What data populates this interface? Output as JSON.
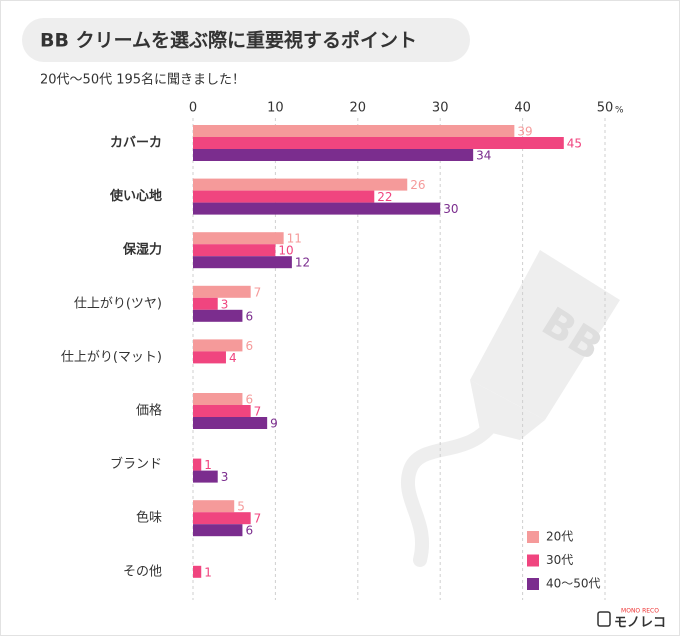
{
  "chart_data": {
    "type": "hbar",
    "title": "BB クリームを選ぶ際に重要視するポイント",
    "subtitle": "20代〜50代 195名に聞きました！",
    "categories": [
      "カバーカ",
      "使い心地",
      "保湿力",
      "仕上がり(ツヤ)",
      "仕上がり(マット)",
      "価格",
      "ブランド",
      "色味",
      "その他"
    ],
    "series": [
      {
        "name": "20代",
        "color": "#f59a9a",
        "values": [
          39,
          26,
          11,
          7,
          6,
          6,
          null,
          5,
          null
        ]
      },
      {
        "name": "30代",
        "color": "#f0457f",
        "values": [
          45,
          22,
          10,
          3,
          4,
          7,
          1,
          7,
          1
        ]
      },
      {
        "name": "40〜50代",
        "color": "#7b2d8e",
        "values": [
          34,
          30,
          12,
          6,
          null,
          9,
          3,
          6,
          null
        ]
      }
    ],
    "xlim": [
      0,
      50
    ],
    "xticks": [
      0,
      10,
      20,
      30,
      40,
      50
    ],
    "x_unit": "%",
    "grid": true,
    "legend": "bottom-right",
    "watermark": "BB",
    "logo": {
      "text": "モノレコ",
      "sub": "MONO RECO"
    }
  }
}
